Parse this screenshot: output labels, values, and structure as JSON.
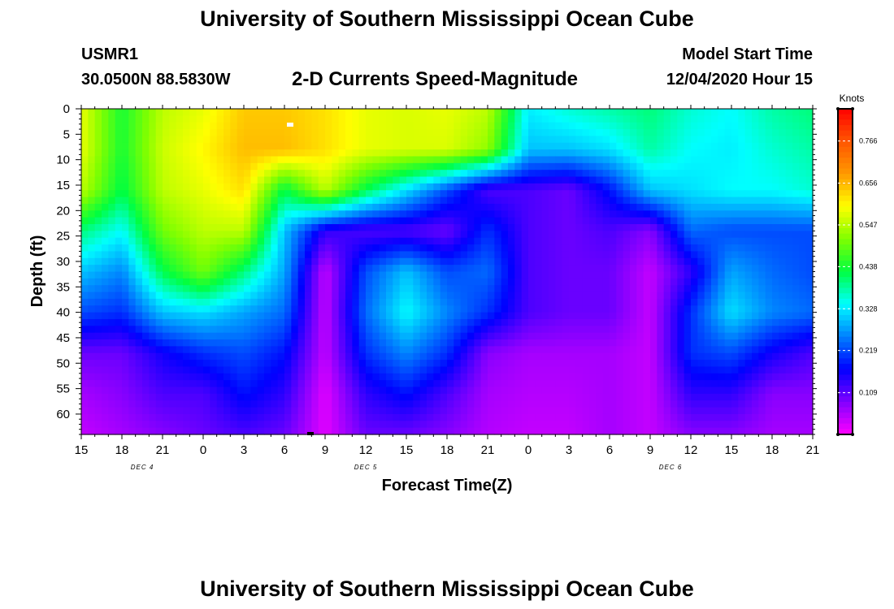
{
  "page": {
    "title_top": "University of Southern Mississippi Ocean Cube",
    "title_bottom": "University of Southern Mississippi Ocean Cube",
    "station_id": "USMR1",
    "station_coords": "30.0500N 88.5830W",
    "plot_title": "2-D Currents Speed-Magnitude",
    "model_start_label": "Model Start Time",
    "model_start_value": "12/04/2020 Hour 15"
  },
  "chart_data": {
    "type": "heatmap",
    "title": "2-D Currents Speed-Magnitude",
    "xlabel": "Forecast Time(Z)",
    "ylabel": "Depth (ft)",
    "x_tick_labels": [
      "15",
      "18",
      "21",
      "0",
      "3",
      "6",
      "9",
      "12",
      "15",
      "18",
      "21",
      "0",
      "3",
      "6",
      "9",
      "12",
      "15",
      "18",
      "21"
    ],
    "x_range_hours": [
      0,
      54
    ],
    "x_tick_step_hours": 3,
    "date_labels": [
      {
        "label": "DEC 4",
        "hour": 4.5
      },
      {
        "label": "DEC 5",
        "hour": 21
      },
      {
        "label": "DEC 6",
        "hour": 43.5
      }
    ],
    "y_tick_labels": [
      "0",
      "5",
      "10",
      "15",
      "20",
      "25",
      "30",
      "35",
      "40",
      "45",
      "50",
      "55",
      "60"
    ],
    "y_range_ft": [
      0,
      64
    ],
    "colorbar": {
      "title": "Knots",
      "tick_labels": [
        "0.766",
        "0.656",
        "0.547",
        "0.438",
        "0.328",
        "0.219",
        "0.109"
      ],
      "ticks": [
        0.766,
        0.656,
        0.547,
        0.438,
        0.328,
        0.219,
        0.109
      ],
      "range": [
        0,
        0.85
      ],
      "colors": [
        "#ff00ff",
        "#8000ff",
        "#0000ff",
        "#0080ff",
        "#00ffff",
        "#00ff40",
        "#80ff00",
        "#ffff00",
        "#ff9900",
        "#ff5500",
        "#ff0000"
      ]
    },
    "speed_grid": {
      "hours": [
        0,
        3,
        6,
        9,
        12,
        15,
        18,
        21,
        24,
        27,
        30,
        33,
        36,
        39,
        42,
        45,
        48,
        51,
        54
      ],
      "depths_ft": [
        0,
        8,
        16,
        24,
        32,
        40,
        48,
        56,
        64
      ],
      "knots": [
        [
          0.58,
          0.44,
          0.55,
          0.58,
          0.64,
          0.64,
          0.62,
          0.58,
          0.57,
          0.58,
          0.55,
          0.33,
          0.36,
          0.38,
          0.4,
          0.36,
          0.34,
          0.38,
          0.4
        ],
        [
          0.58,
          0.44,
          0.56,
          0.6,
          0.65,
          0.65,
          0.62,
          0.58,
          0.57,
          0.57,
          0.52,
          0.3,
          0.3,
          0.32,
          0.38,
          0.34,
          0.33,
          0.36,
          0.38
        ],
        [
          0.55,
          0.42,
          0.55,
          0.58,
          0.62,
          0.42,
          0.55,
          0.42,
          0.32,
          0.22,
          0.12,
          0.12,
          0.1,
          0.18,
          0.3,
          0.32,
          0.34,
          0.34,
          0.36
        ],
        [
          0.4,
          0.34,
          0.5,
          0.55,
          0.55,
          0.3,
          0.14,
          0.12,
          0.12,
          0.1,
          0.2,
          0.12,
          0.1,
          0.12,
          0.08,
          0.24,
          0.22,
          0.22,
          0.22
        ],
        [
          0.3,
          0.26,
          0.42,
          0.5,
          0.4,
          0.28,
          0.04,
          0.22,
          0.3,
          0.22,
          0.24,
          0.12,
          0.1,
          0.1,
          0.04,
          0.14,
          0.28,
          0.24,
          0.22
        ],
        [
          0.22,
          0.2,
          0.3,
          0.32,
          0.28,
          0.24,
          0.04,
          0.24,
          0.34,
          0.26,
          0.2,
          0.12,
          0.1,
          0.1,
          0.04,
          0.2,
          0.32,
          0.26,
          0.24
        ],
        [
          0.1,
          0.1,
          0.16,
          0.2,
          0.22,
          0.18,
          0.04,
          0.2,
          0.26,
          0.2,
          0.08,
          0.06,
          0.06,
          0.06,
          0.04,
          0.2,
          0.22,
          0.16,
          0.12
        ],
        [
          0.06,
          0.08,
          0.12,
          0.12,
          0.18,
          0.14,
          0.02,
          0.14,
          0.18,
          0.12,
          0.06,
          0.05,
          0.05,
          0.06,
          0.04,
          0.14,
          0.14,
          0.08,
          0.08
        ],
        [
          0.04,
          0.06,
          0.08,
          0.1,
          0.12,
          0.1,
          0.02,
          0.1,
          0.1,
          0.08,
          0.05,
          0.04,
          0.04,
          0.06,
          0.04,
          0.08,
          0.08,
          0.06,
          0.06
        ]
      ]
    }
  }
}
